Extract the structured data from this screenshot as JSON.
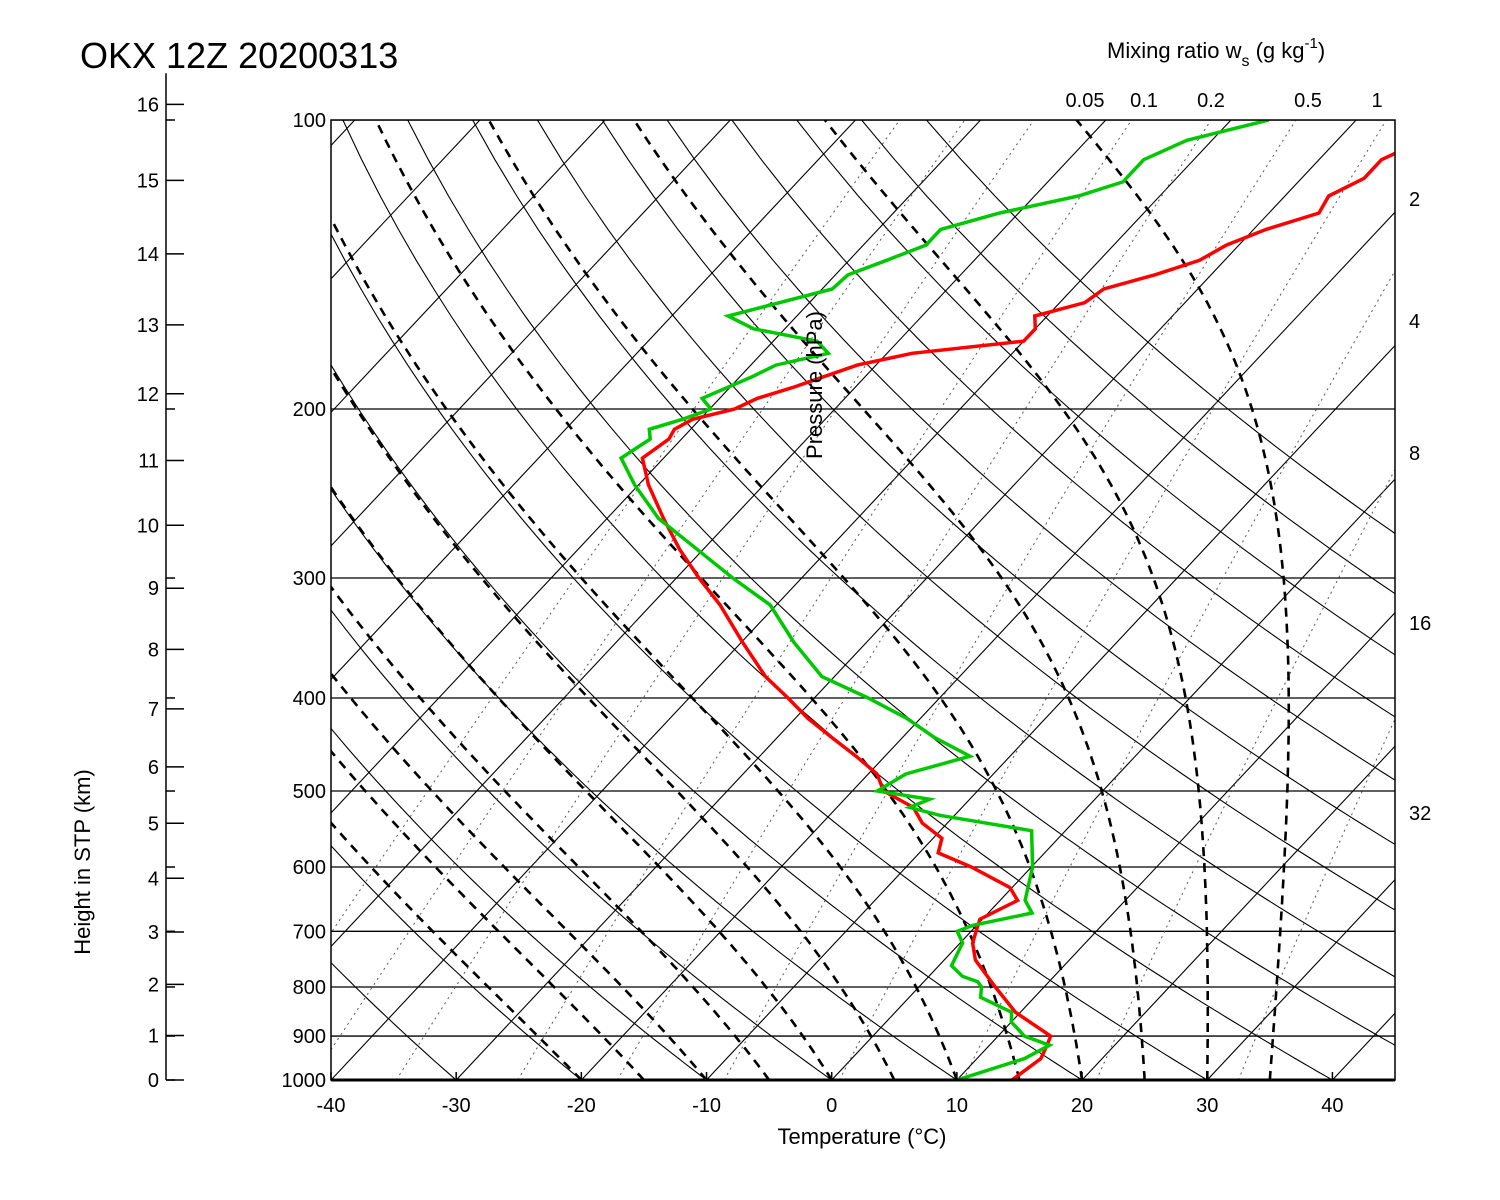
{
  "chart_data": {
    "type": "line",
    "title": "OKX 12Z 20200313",
    "xlabel": "Temperature (°C)",
    "ylabel_left": "Height in STP (km)",
    "ylabel_inner": "Pressure (hPa)",
    "mixing_ratio_label": "Mixing ratio w",
    "mixing_ratio_label_sub": "s",
    "mixing_ratio_label_units": " (g kg",
    "mixing_ratio_label_sup": "-1",
    "mixing_ratio_label_close": ")",
    "xlim": [
      -40,
      45
    ],
    "ylim": [
      1000,
      100
    ],
    "x_ticks": [
      "-40",
      "-30",
      "-20",
      "-10",
      "0",
      "10",
      "20",
      "30",
      "40"
    ],
    "x_tick_values": [
      -40,
      -30,
      -20,
      -10,
      0,
      10,
      20,
      30,
      40
    ],
    "pressure_ticks": [
      "100",
      "200",
      "300",
      "400",
      "500",
      "600",
      "700",
      "800",
      "900",
      "1000"
    ],
    "pressure_tick_values": [
      100,
      200,
      300,
      400,
      500,
      600,
      700,
      800,
      900,
      1000
    ],
    "height_ticks": [
      "0",
      "1",
      "2",
      "3",
      "4",
      "5",
      "6",
      "7",
      "8",
      "9",
      "10",
      "11",
      "12",
      "13",
      "14",
      "15",
      "16"
    ],
    "height_tick_values": [
      0,
      1,
      2,
      3,
      4,
      5,
      6,
      7,
      8,
      9,
      10,
      11,
      12,
      13,
      14,
      15,
      16
    ],
    "mixing_ratio_top_ticks": [
      "0.05",
      "0.1",
      "0.2",
      "0.5",
      "1"
    ],
    "mixing_ratio_top_values": [
      0.05,
      0.1,
      0.2,
      0.5,
      1
    ],
    "mixing_ratio_right_ticks": [
      "2",
      "4",
      "8",
      "16",
      "32"
    ],
    "mixing_ratio_right_values": [
      2,
      4,
      8,
      16,
      32
    ],
    "dry_adiabats_theta_c": [
      -30,
      -20,
      -10,
      0,
      10,
      20,
      30,
      40,
      50,
      60,
      70,
      80,
      90,
      100,
      110,
      120,
      130
    ],
    "moist_adiabats_thetaw_c": [
      -20,
      -15,
      -10,
      -5,
      0,
      5,
      10,
      15,
      20,
      25,
      30,
      35
    ],
    "isotherms_c": [
      -150,
      -140,
      -130,
      -120,
      -110,
      -100,
      -90,
      -80,
      -70,
      -60,
      -50,
      -40,
      -30,
      -20,
      -10,
      0,
      10,
      20,
      30,
      40
    ],
    "series": [
      {
        "name": "Temperature",
        "color": "#ff0000",
        "pressure_hPa": [
          1000,
          950,
          920,
          900,
          850,
          800,
          750,
          720,
          700,
          680,
          650,
          630,
          600,
          580,
          560,
          540,
          520,
          500,
          480,
          460,
          440,
          420,
          400,
          380,
          350,
          320,
          300,
          280,
          260,
          240,
          225,
          215,
          210,
          205,
          200,
          195,
          190,
          180,
          175,
          170,
          165,
          160,
          155,
          150,
          145,
          140,
          135,
          130,
          125,
          120,
          115,
          110,
          106,
          100
        ],
        "values": [
          14.4,
          15.1,
          14.6,
          14.2,
          9.6,
          6.1,
          2.5,
          1.0,
          0.4,
          -0.2,
          1.4,
          -0.2,
          -4.8,
          -8.5,
          -9.3,
          -12.0,
          -13.9,
          -17.5,
          -19.3,
          -22.3,
          -25.6,
          -29.0,
          -32.1,
          -35.5,
          -39.9,
          -44.5,
          -48.2,
          -51.9,
          -55.5,
          -59.2,
          -61.7,
          -61.0,
          -61.3,
          -60.6,
          -58.0,
          -57.0,
          -55.0,
          -51.5,
          -48.0,
          -40.0,
          -40.0,
          -41.0,
          -38.0,
          -37.5,
          -34.5,
          -32.0,
          -31.0,
          -29.0,
          -26.0,
          -26.5,
          -25.0,
          -25.0,
          -23.5,
          -22.5
        ]
      },
      {
        "name": "Dewpoint",
        "color": "#00c800",
        "pressure_hPa": [
          1000,
          950,
          920,
          900,
          870,
          850,
          820,
          800,
          790,
          780,
          760,
          720,
          700,
          690,
          670,
          650,
          600,
          550,
          530,
          520,
          510,
          500,
          480,
          460,
          440,
          420,
          400,
          380,
          350,
          320,
          300,
          280,
          260,
          240,
          225,
          215,
          210,
          205,
          200,
          195,
          185,
          180,
          175,
          170,
          165,
          160,
          150,
          145,
          140,
          135,
          130,
          125,
          120,
          116,
          110,
          105,
          100
        ],
        "values": [
          10.0,
          13.8,
          14.8,
          12.1,
          10.0,
          9.3,
          5.7,
          5.0,
          4.3,
          2.7,
          1.0,
          0.2,
          -1.1,
          -0.3,
          3.5,
          2.0,
          0.1,
          -2.7,
          -11.2,
          -14.2,
          -13.2,
          -18.0,
          -17.0,
          -13.2,
          -17.4,
          -21.1,
          -25.7,
          -31.0,
          -35.8,
          -40.5,
          -45.5,
          -50.5,
          -55.9,
          -60.3,
          -63.4,
          -62.5,
          -63.3,
          -61.4,
          -59.9,
          -61.4,
          -59.0,
          -58.0,
          -54.7,
          -56.5,
          -62.5,
          -65.5,
          -59.2,
          -59.0,
          -57.0,
          -55.0,
          -55.0,
          -51.5,
          -46.5,
          -44.0,
          -44.0,
          -42.0,
          -37.0
        ]
      }
    ],
    "grid": true
  }
}
